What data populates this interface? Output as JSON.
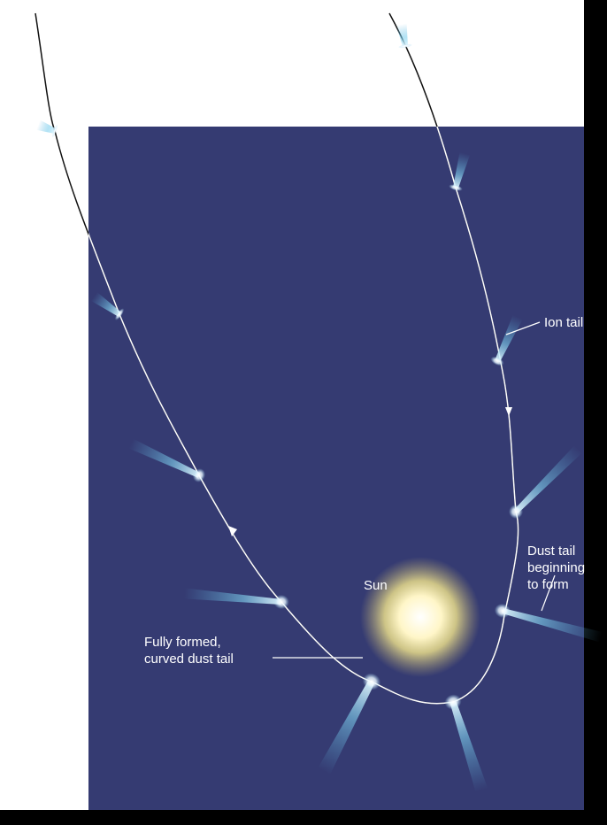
{
  "labels": {
    "ion_tail": "Ion tail",
    "dust_tail_forming": [
      "Dust tail",
      "beginning",
      "to form"
    ],
    "sun": "Sun",
    "dust_tail_formed": [
      "Fully formed,",
      "curved dust tail"
    ]
  }
}
